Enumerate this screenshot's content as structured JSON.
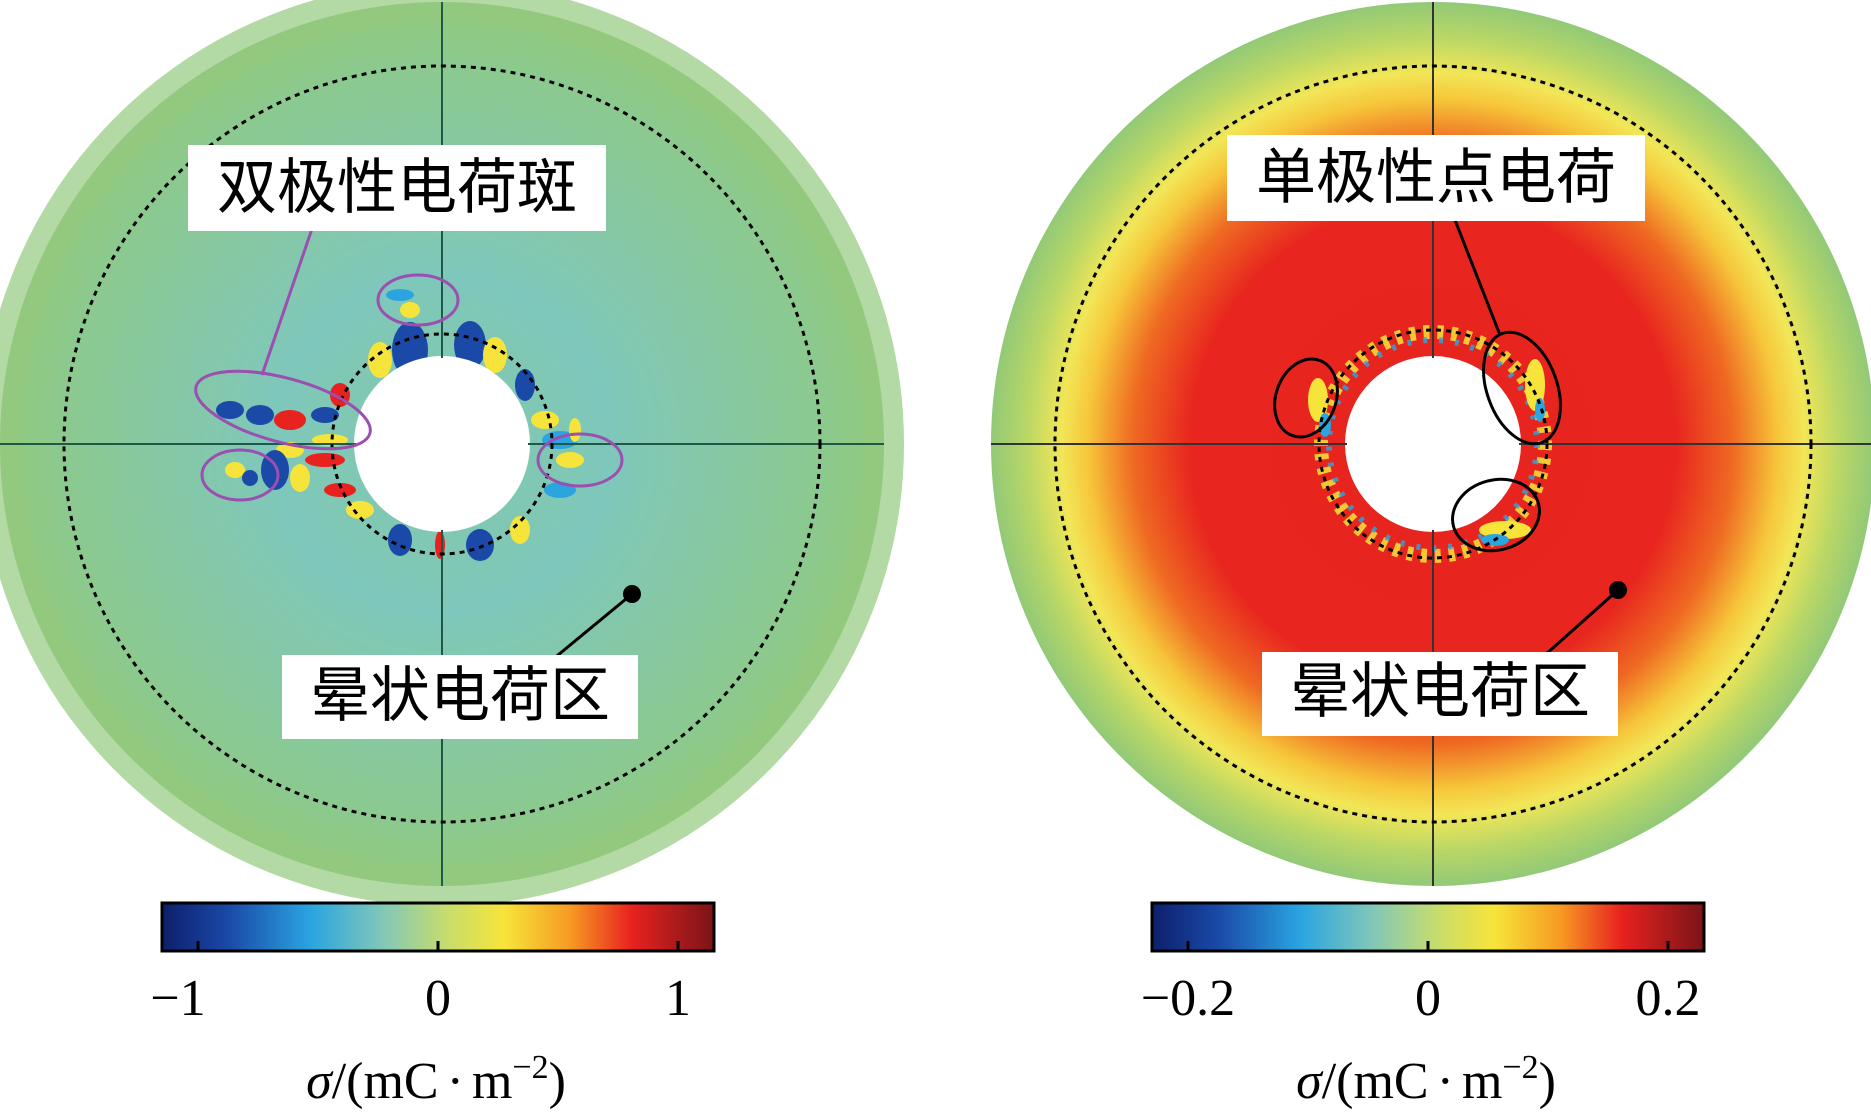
{
  "panels": [
    {
      "id": "left",
      "label_bipolar": "双极性电荷斑",
      "label_halo": "晕状电荷区",
      "colorbar": {
        "ticks": [
          "−1",
          "0",
          "1"
        ],
        "tick_values": [
          -1,
          0,
          1
        ],
        "range": [
          -1.15,
          1.15
        ]
      },
      "unit": {
        "symbol": "σ",
        "slash": "/",
        "open": "(mC",
        "dot": "·",
        "m": "m",
        "exp": "−2",
        "close": ")"
      },
      "fill": "#8ec98a",
      "annotation_color": "#9b4fb0"
    },
    {
      "id": "right",
      "label_unipolar": "单极性点电荷",
      "label_halo": "晕状电荷区",
      "colorbar": {
        "ticks": [
          "−0.2",
          "0",
          "0.2"
        ],
        "tick_values": [
          -0.2,
          0,
          0.2
        ],
        "range": [
          -0.23,
          0.23
        ]
      },
      "unit": {
        "symbol": "σ",
        "slash": "/",
        "open": "(mC",
        "dot": "·",
        "m": "m",
        "exp": "−2",
        "close": ")"
      },
      "fill": "#e8261f",
      "annotation_color": "#000000"
    }
  ],
  "colormap": [
    "#0d1f6b",
    "#1a49a8",
    "#2aa5e0",
    "#82c7b8",
    "#d8e35a",
    "#f7e43a",
    "#f79a22",
    "#e8221f",
    "#b41c1e",
    "#7a1418"
  ]
}
